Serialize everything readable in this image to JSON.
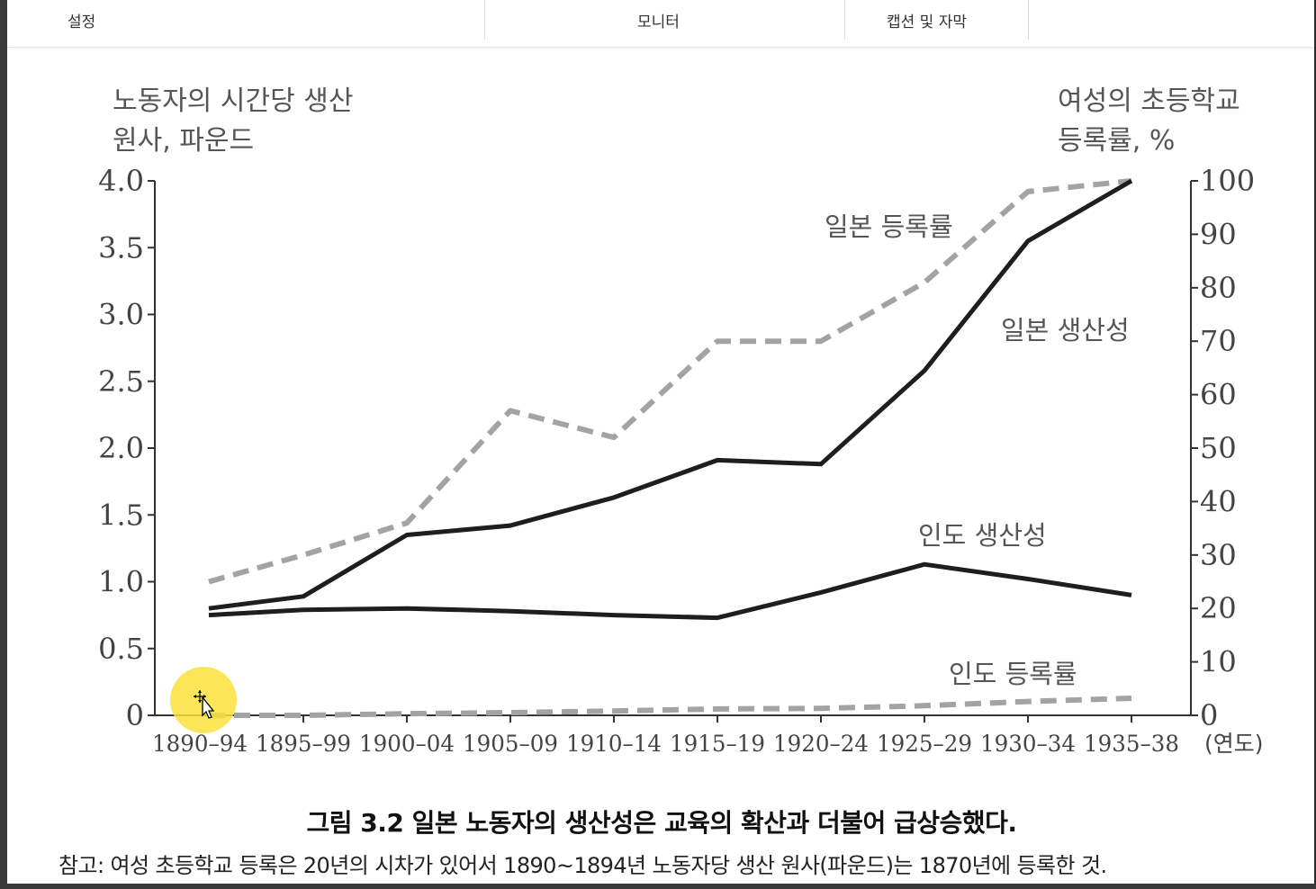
{
  "menu": {
    "tabs": [
      {
        "label": "설정"
      },
      {
        "label": "모니터"
      },
      {
        "label": "캡션 및 자막"
      }
    ]
  },
  "chart_data": {
    "type": "line",
    "left_axis_title": [
      "노동자의 시간당 생산",
      "원사, 파운드"
    ],
    "right_axis_title": [
      "여성의 초등학교",
      "등록률, %"
    ],
    "categories": [
      "1890–94",
      "1895–99",
      "1900–04",
      "1905–09",
      "1910–14",
      "1915–19",
      "1920–24",
      "1925–29",
      "1930–34",
      "1935–38"
    ],
    "x_unit_label": "(연도)",
    "left_ylim": [
      0,
      4.0
    ],
    "left_ticks": [
      "0",
      "0.5",
      "1.0",
      "1.5",
      "2.0",
      "2.5",
      "3.0",
      "3.5",
      "4.0"
    ],
    "right_ylim": [
      0,
      100
    ],
    "right_ticks": [
      "0",
      "10",
      "20",
      "30",
      "40",
      "50",
      "60",
      "70",
      "80",
      "90",
      "100"
    ],
    "series": [
      {
        "name": "일본 생산성",
        "axis": "left",
        "style": "solid",
        "color": "#1e1e1e",
        "values": [
          0.8,
          0.89,
          1.35,
          1.42,
          1.63,
          1.91,
          1.88,
          2.58,
          3.55,
          4.0
        ]
      },
      {
        "name": "인도 생산성",
        "axis": "left",
        "style": "solid",
        "color": "#1e1e1e",
        "values": [
          0.75,
          0.79,
          0.8,
          0.78,
          0.75,
          0.73,
          0.92,
          1.13,
          1.02,
          0.9
        ]
      },
      {
        "name": "일본 등록률",
        "axis": "right",
        "style": "dashed",
        "color": "#a3a3a3",
        "values": [
          25,
          30,
          36,
          57,
          52,
          70,
          70,
          81,
          98,
          100
        ]
      },
      {
        "name": "인도 등록률",
        "axis": "right",
        "style": "dashed",
        "color": "#a3a3a3",
        "values": [
          0,
          0,
          0.3,
          0.5,
          0.8,
          1.2,
          1.3,
          1.8,
          2.6,
          3.2
        ]
      }
    ]
  },
  "caption": {
    "title": "그림 3.2 일본 노동자의 생산성은 교육의 확산과 더불어 급상승했다.",
    "note": "참고: 여성 초등학교 등록은 20년의 시차가 있어서 1890~1894년 노동자당 생산 원사(파운드)는 1870년에 등록한 것."
  },
  "colors": {
    "line_dark": "#1e1e1e",
    "line_grey": "#a3a3a3",
    "text": "#444444",
    "highlight": "#fae13c"
  }
}
